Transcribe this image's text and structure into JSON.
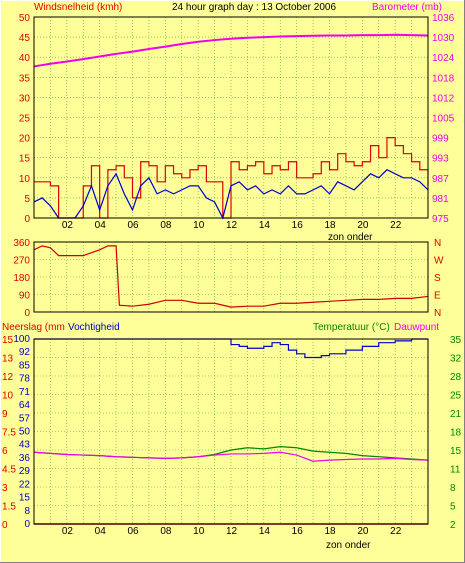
{
  "header": {
    "left_label": "Windsnelheid (kmh)",
    "title": "24 hour graph day : 13 October 2006",
    "right_label": "Barometer (mb)"
  },
  "bottom_header": {
    "left_label_1": "Neerslag (mm",
    "left_label_2": "Vochtigheid",
    "right_label_1": "Temperatuur (°C)",
    "right_label_2": "Dauwpunt"
  },
  "sunset_label": "zon onder",
  "colors": {
    "background": "#ffff99",
    "grid": "#44aa44",
    "wind_gust": "#dd0000",
    "wind_avg": "#0000cc",
    "barometer": "#ee00ee",
    "direction": "#cc0000",
    "humidity": "#0000cc",
    "temperature": "#008800",
    "dewpoint": "#ee00ee",
    "rain": "#dd0000"
  },
  "chart_data": [
    {
      "type": "line",
      "name": "wind-barometer",
      "x_ticks": [
        "02",
        "04",
        "06",
        "08",
        "10",
        "12",
        "14",
        "16",
        "18",
        "20",
        "22"
      ],
      "y_left": {
        "ticks": [
          0,
          5,
          10,
          15,
          20,
          25,
          30,
          35,
          40,
          45,
          50
        ],
        "lim": [
          0,
          50
        ]
      },
      "y_right": {
        "ticks": [
          975,
          981,
          987,
          993,
          999,
          1005,
          1012,
          1018,
          1024,
          1030,
          1036
        ],
        "lim": [
          975,
          1036
        ]
      },
      "series": [
        {
          "key": "gust",
          "x": [
            0,
            0.5,
            1,
            1.5,
            2,
            2.5,
            3,
            3.5,
            4,
            4.5,
            5,
            5.5,
            6,
            6.5,
            7,
            7.5,
            8,
            8.5,
            9,
            9.5,
            10,
            10.5,
            11,
            11.5,
            12,
            12.5,
            13,
            13.5,
            14,
            14.5,
            15,
            15.5,
            16,
            16.5,
            17,
            17.5,
            18,
            18.5,
            19,
            19.5,
            20,
            20.5,
            21,
            21.5,
            22,
            22.5,
            23,
            23.5,
            24
          ],
          "values": [
            9,
            9,
            8,
            0,
            0,
            0,
            8,
            13,
            0,
            12,
            13,
            10,
            5,
            14,
            13,
            9,
            13,
            11,
            10,
            12,
            13,
            9,
            9,
            0,
            14,
            12,
            13,
            14,
            11,
            13,
            12,
            14,
            10,
            10,
            11,
            14,
            12,
            16,
            14,
            13,
            14,
            18,
            15,
            20,
            18,
            16,
            14,
            12,
            8
          ]
        },
        {
          "key": "avg",
          "x": [
            0,
            0.5,
            1,
            1.5,
            2,
            2.5,
            3,
            3.5,
            4,
            4.5,
            5,
            5.5,
            6,
            6.5,
            7,
            7.5,
            8,
            8.5,
            9,
            9.5,
            10,
            10.5,
            11,
            11.5,
            12,
            12.5,
            13,
            13.5,
            14,
            14.5,
            15,
            15.5,
            16,
            16.5,
            17,
            17.5,
            18,
            18.5,
            19,
            19.5,
            20,
            20.5,
            21,
            21.5,
            22,
            22.5,
            23,
            23.5,
            24
          ],
          "values": [
            4,
            5,
            3,
            0,
            0,
            0,
            3,
            8,
            2,
            8,
            11,
            6,
            2,
            8,
            10,
            6,
            7,
            6,
            7,
            8,
            8,
            5,
            4,
            0,
            8,
            9,
            7,
            8,
            6,
            7,
            6,
            8,
            6,
            6,
            7,
            8,
            6,
            9,
            8,
            7,
            9,
            11,
            10,
            12,
            11,
            10,
            10,
            9,
            7
          ]
        },
        {
          "key": "barometer",
          "x": [
            0,
            1,
            2,
            3,
            4,
            5,
            6,
            7,
            8,
            9,
            10,
            11,
            12,
            13,
            14,
            15,
            16,
            17,
            18,
            19,
            20,
            21,
            22,
            23,
            24
          ],
          "values": [
            1021,
            1021.8,
            1022.5,
            1023.2,
            1024,
            1024.8,
            1025.5,
            1026.3,
            1027,
            1027.8,
            1028.5,
            1029,
            1029.4,
            1029.7,
            1029.9,
            1030.1,
            1030.2,
            1030.3,
            1030.4,
            1030.4,
            1030.5,
            1030.5,
            1030.6,
            1030.5,
            1030.4
          ]
        }
      ]
    },
    {
      "type": "line",
      "name": "wind-direction",
      "y_left": {
        "ticks": [
          0,
          90,
          180,
          270,
          360
        ],
        "lim": [
          0,
          360
        ]
      },
      "y_right": {
        "labels": [
          "N",
          "W",
          "S",
          "E",
          "N"
        ]
      },
      "series": [
        {
          "key": "direction",
          "x": [
            0,
            0.5,
            1,
            1.5,
            2,
            3,
            4,
            4.5,
            5,
            5.2,
            6,
            7,
            8,
            9,
            10,
            11,
            12,
            13,
            14,
            15,
            16,
            17,
            18,
            19,
            20,
            21,
            22,
            23,
            24
          ],
          "values": [
            320,
            340,
            330,
            290,
            290,
            290,
            320,
            340,
            340,
            35,
            30,
            40,
            60,
            60,
            45,
            45,
            25,
            30,
            30,
            45,
            45,
            50,
            55,
            60,
            65,
            65,
            70,
            70,
            80
          ]
        }
      ]
    },
    {
      "type": "line",
      "name": "humidity-temperature",
      "x_ticks": [
        "02",
        "04",
        "06",
        "08",
        "10",
        "12",
        "14",
        "16",
        "18",
        "20",
        "22"
      ],
      "y_left_rain": {
        "ticks": [
          0,
          1.5,
          3,
          4.5,
          6,
          7.5,
          9,
          10,
          12,
          13,
          15
        ],
        "lim": [
          0,
          15
        ]
      },
      "y_left_humidity": {
        "ticks": [
          0,
          8,
          15,
          22,
          29,
          36,
          43,
          50,
          57,
          64,
          71,
          78,
          85,
          92,
          100
        ],
        "lim": [
          0,
          100
        ]
      },
      "y_right": {
        "ticks": [
          2,
          5,
          8,
          11,
          15,
          18,
          21,
          25,
          28,
          32,
          35
        ],
        "lim": [
          2,
          35
        ]
      },
      "series": [
        {
          "key": "humidity",
          "x": [
            0,
            2,
            4,
            6,
            8,
            10,
            11,
            12,
            12.5,
            13,
            13.5,
            14,
            14.5,
            15,
            15.5,
            16,
            16.5,
            17,
            17.5,
            18,
            19,
            20,
            21,
            22,
            23,
            24
          ],
          "values": [
            100,
            100,
            100,
            100,
            100,
            100,
            100,
            97,
            96,
            95,
            95,
            96,
            98,
            97,
            94,
            92,
            90,
            90,
            91,
            92,
            94,
            96,
            98,
            99,
            100,
            100
          ]
        },
        {
          "key": "temperature",
          "x": [
            0,
            1,
            2,
            3,
            4,
            5,
            6,
            7,
            8,
            9,
            10,
            11,
            12,
            13,
            14,
            15,
            16,
            17,
            18,
            19,
            20,
            21,
            22,
            23,
            24
          ],
          "values": [
            14.8,
            14.6,
            14.4,
            14.3,
            14.2,
            14.0,
            13.9,
            13.8,
            13.7,
            13.8,
            14.0,
            14.4,
            15.2,
            15.6,
            15.4,
            15.8,
            15.6,
            15.0,
            14.8,
            14.6,
            14.2,
            14.0,
            13.8,
            13.6,
            13.4
          ]
        },
        {
          "key": "dewpoint",
          "x": [
            0,
            1,
            2,
            3,
            4,
            5,
            6,
            7,
            8,
            9,
            10,
            11,
            12,
            13,
            14,
            15,
            16,
            17,
            18,
            19,
            20,
            21,
            22,
            23,
            24
          ],
          "values": [
            14.8,
            14.6,
            14.4,
            14.3,
            14.2,
            14.0,
            13.9,
            13.8,
            13.7,
            13.8,
            14.0,
            14.3,
            14.5,
            14.5,
            14.6,
            14.8,
            14.3,
            13.2,
            13.4,
            13.5,
            13.6,
            13.6,
            13.7,
            13.5,
            13.4
          ]
        },
        {
          "key": "rain",
          "x": [
            0,
            24
          ],
          "values": [
            0,
            0
          ]
        }
      ]
    }
  ]
}
